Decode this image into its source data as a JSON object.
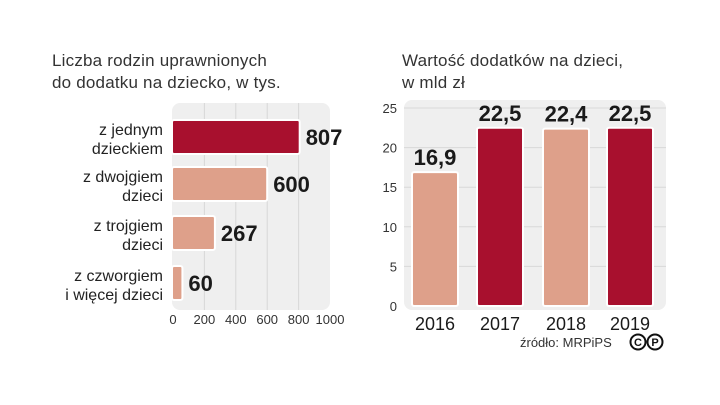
{
  "chart_data": [
    {
      "type": "bar",
      "orientation": "horizontal",
      "title": "Liczba rodzin uprawnionych\ndo dodatku na dziecko, w tys.",
      "categories": [
        "z jednym\ndzieckiem",
        "z dwojgiem\ndzieci",
        "z trojgiem\ndzieci",
        "z czworgiem\ni więcej dzieci"
      ],
      "values": [
        807,
        600,
        267,
        60
      ],
      "value_labels": [
        "807",
        "600",
        "267",
        "60"
      ],
      "xlim": [
        0,
        1000
      ],
      "xticks": [
        "0",
        "200",
        "400",
        "600",
        "800",
        "1000"
      ],
      "highlight_index": 0,
      "grid": true
    },
    {
      "type": "bar",
      "orientation": "vertical",
      "title": "Wartość dodatków na dzieci,\nw mld zł",
      "categories": [
        "2016",
        "2017",
        "2018",
        "2019"
      ],
      "values": [
        16.9,
        22.5,
        22.4,
        22.5
      ],
      "value_labels": [
        "16,9",
        "22,5",
        "22,4",
        "22,5"
      ],
      "ylim": [
        0,
        25
      ],
      "yticks": [
        "0",
        "5",
        "10",
        "15",
        "20",
        "25"
      ],
      "highlight_indices": [
        1,
        3
      ],
      "grid": true
    }
  ],
  "colors": {
    "accent": "#a8102e",
    "base": "#dea08a",
    "panel": "#efefef",
    "grid": "#d8d8d8"
  },
  "source": "źródło: MRPiPS",
  "logo_text": "CP"
}
